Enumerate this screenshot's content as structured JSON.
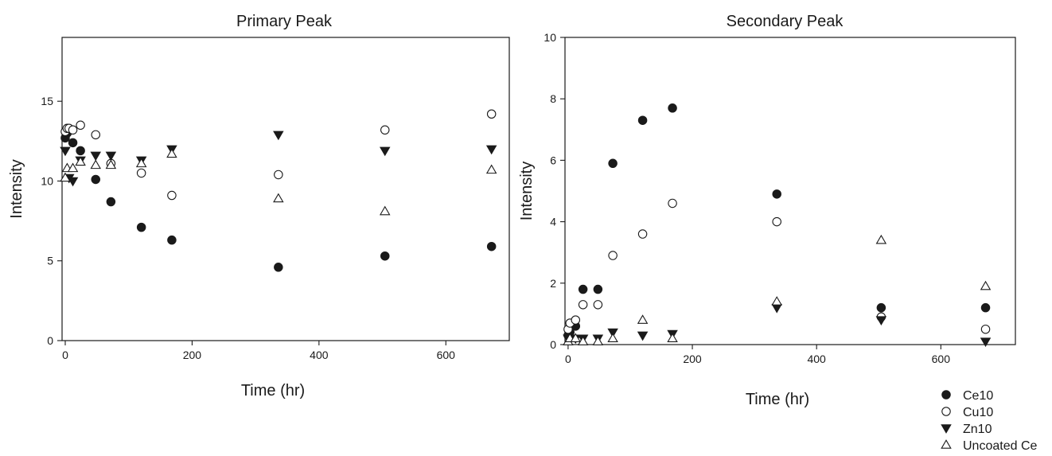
{
  "chart_data": [
    {
      "type": "scatter",
      "title": "Primary Peak",
      "xlabel": "Time (hr)",
      "ylabel": "Intensity",
      "xlim": [
        -5,
        700
      ],
      "ylim": [
        0,
        19
      ],
      "xticks": [
        0,
        200,
        400,
        600
      ],
      "yticks": [
        0,
        5,
        10,
        15
      ],
      "series": [
        {
          "name": "Ce10",
          "marker": "filled-circle",
          "x": [
            0,
            3,
            12,
            24,
            48,
            72,
            120,
            168,
            336,
            504,
            672
          ],
          "y": [
            12.7,
            13.0,
            12.4,
            11.9,
            10.1,
            8.7,
            7.1,
            6.3,
            4.6,
            5.3,
            5.9
          ]
        },
        {
          "name": "Cu10",
          "marker": "open-circle",
          "x": [
            0,
            3,
            6,
            12,
            24,
            48,
            72,
            120,
            168,
            336,
            504,
            672
          ],
          "y": [
            13.1,
            13.3,
            13.3,
            13.2,
            13.5,
            12.9,
            11.1,
            10.5,
            9.1,
            10.4,
            13.2,
            14.2
          ]
        },
        {
          "name": "Zn10",
          "marker": "filled-triangle-down",
          "x": [
            0,
            6,
            12,
            24,
            48,
            72,
            120,
            168,
            336,
            504,
            672
          ],
          "y": [
            11.9,
            10.2,
            10.0,
            11.3,
            11.6,
            11.6,
            11.3,
            12.0,
            12.9,
            11.9,
            12.0
          ]
        },
        {
          "name": "Uncoated Ce",
          "marker": "open-triangle-up",
          "x": [
            0,
            3,
            12,
            24,
            48,
            72,
            120,
            168,
            336,
            504,
            672
          ],
          "y": [
            10.2,
            10.8,
            10.8,
            11.2,
            11.0,
            11.0,
            11.1,
            11.7,
            8.9,
            8.1,
            10.7
          ]
        }
      ]
    },
    {
      "type": "scatter",
      "title": "Secondary Peak",
      "xlabel": "Time (hr)",
      "ylabel": "Intensity",
      "xlim": [
        -5,
        720
      ],
      "ylim": [
        0,
        10
      ],
      "xticks": [
        0,
        200,
        400,
        600
      ],
      "yticks": [
        0,
        2,
        4,
        6,
        8,
        10
      ],
      "series": [
        {
          "name": "Ce10",
          "marker": "filled-circle",
          "x": [
            0,
            3,
            12,
            24,
            48,
            72,
            120,
            168,
            336,
            504,
            672
          ],
          "y": [
            0.3,
            0.4,
            0.6,
            1.8,
            1.8,
            5.9,
            7.3,
            7.7,
            4.9,
            1.2,
            1.2
          ]
        },
        {
          "name": "Cu10",
          "marker": "open-circle",
          "x": [
            0,
            3,
            12,
            24,
            48,
            72,
            120,
            168,
            336,
            504,
            672
          ],
          "y": [
            0.5,
            0.7,
            0.8,
            1.3,
            1.3,
            2.9,
            3.6,
            4.6,
            4.0,
            0.9,
            0.5
          ]
        },
        {
          "name": "Zn10",
          "marker": "filled-triangle-down",
          "x": [
            0,
            3,
            12,
            24,
            48,
            72,
            120,
            168,
            336,
            504,
            672
          ],
          "y": [
            0.2,
            0.2,
            0.2,
            0.2,
            0.2,
            0.4,
            0.3,
            0.35,
            1.2,
            0.8,
            0.1
          ]
        },
        {
          "name": "Uncoated Ce",
          "marker": "open-triangle-up",
          "x": [
            0,
            3,
            12,
            24,
            48,
            72,
            120,
            168,
            336,
            504,
            672
          ],
          "y": [
            0.1,
            0.2,
            0.2,
            0.1,
            0.1,
            0.2,
            0.8,
            0.2,
            1.4,
            3.4,
            1.9
          ]
        }
      ]
    }
  ],
  "legend": {
    "placement": "bottom-right",
    "items": [
      {
        "label": "Ce10",
        "marker": "filled-circle"
      },
      {
        "label": "Cu10",
        "marker": "open-circle"
      },
      {
        "label": "Zn10",
        "marker": "filled-triangle-down"
      },
      {
        "label": "Uncoated Ce",
        "marker": "open-triangle-up"
      }
    ]
  },
  "colors": {
    "ink": "#1a1a1a",
    "background": "#ffffff"
  }
}
